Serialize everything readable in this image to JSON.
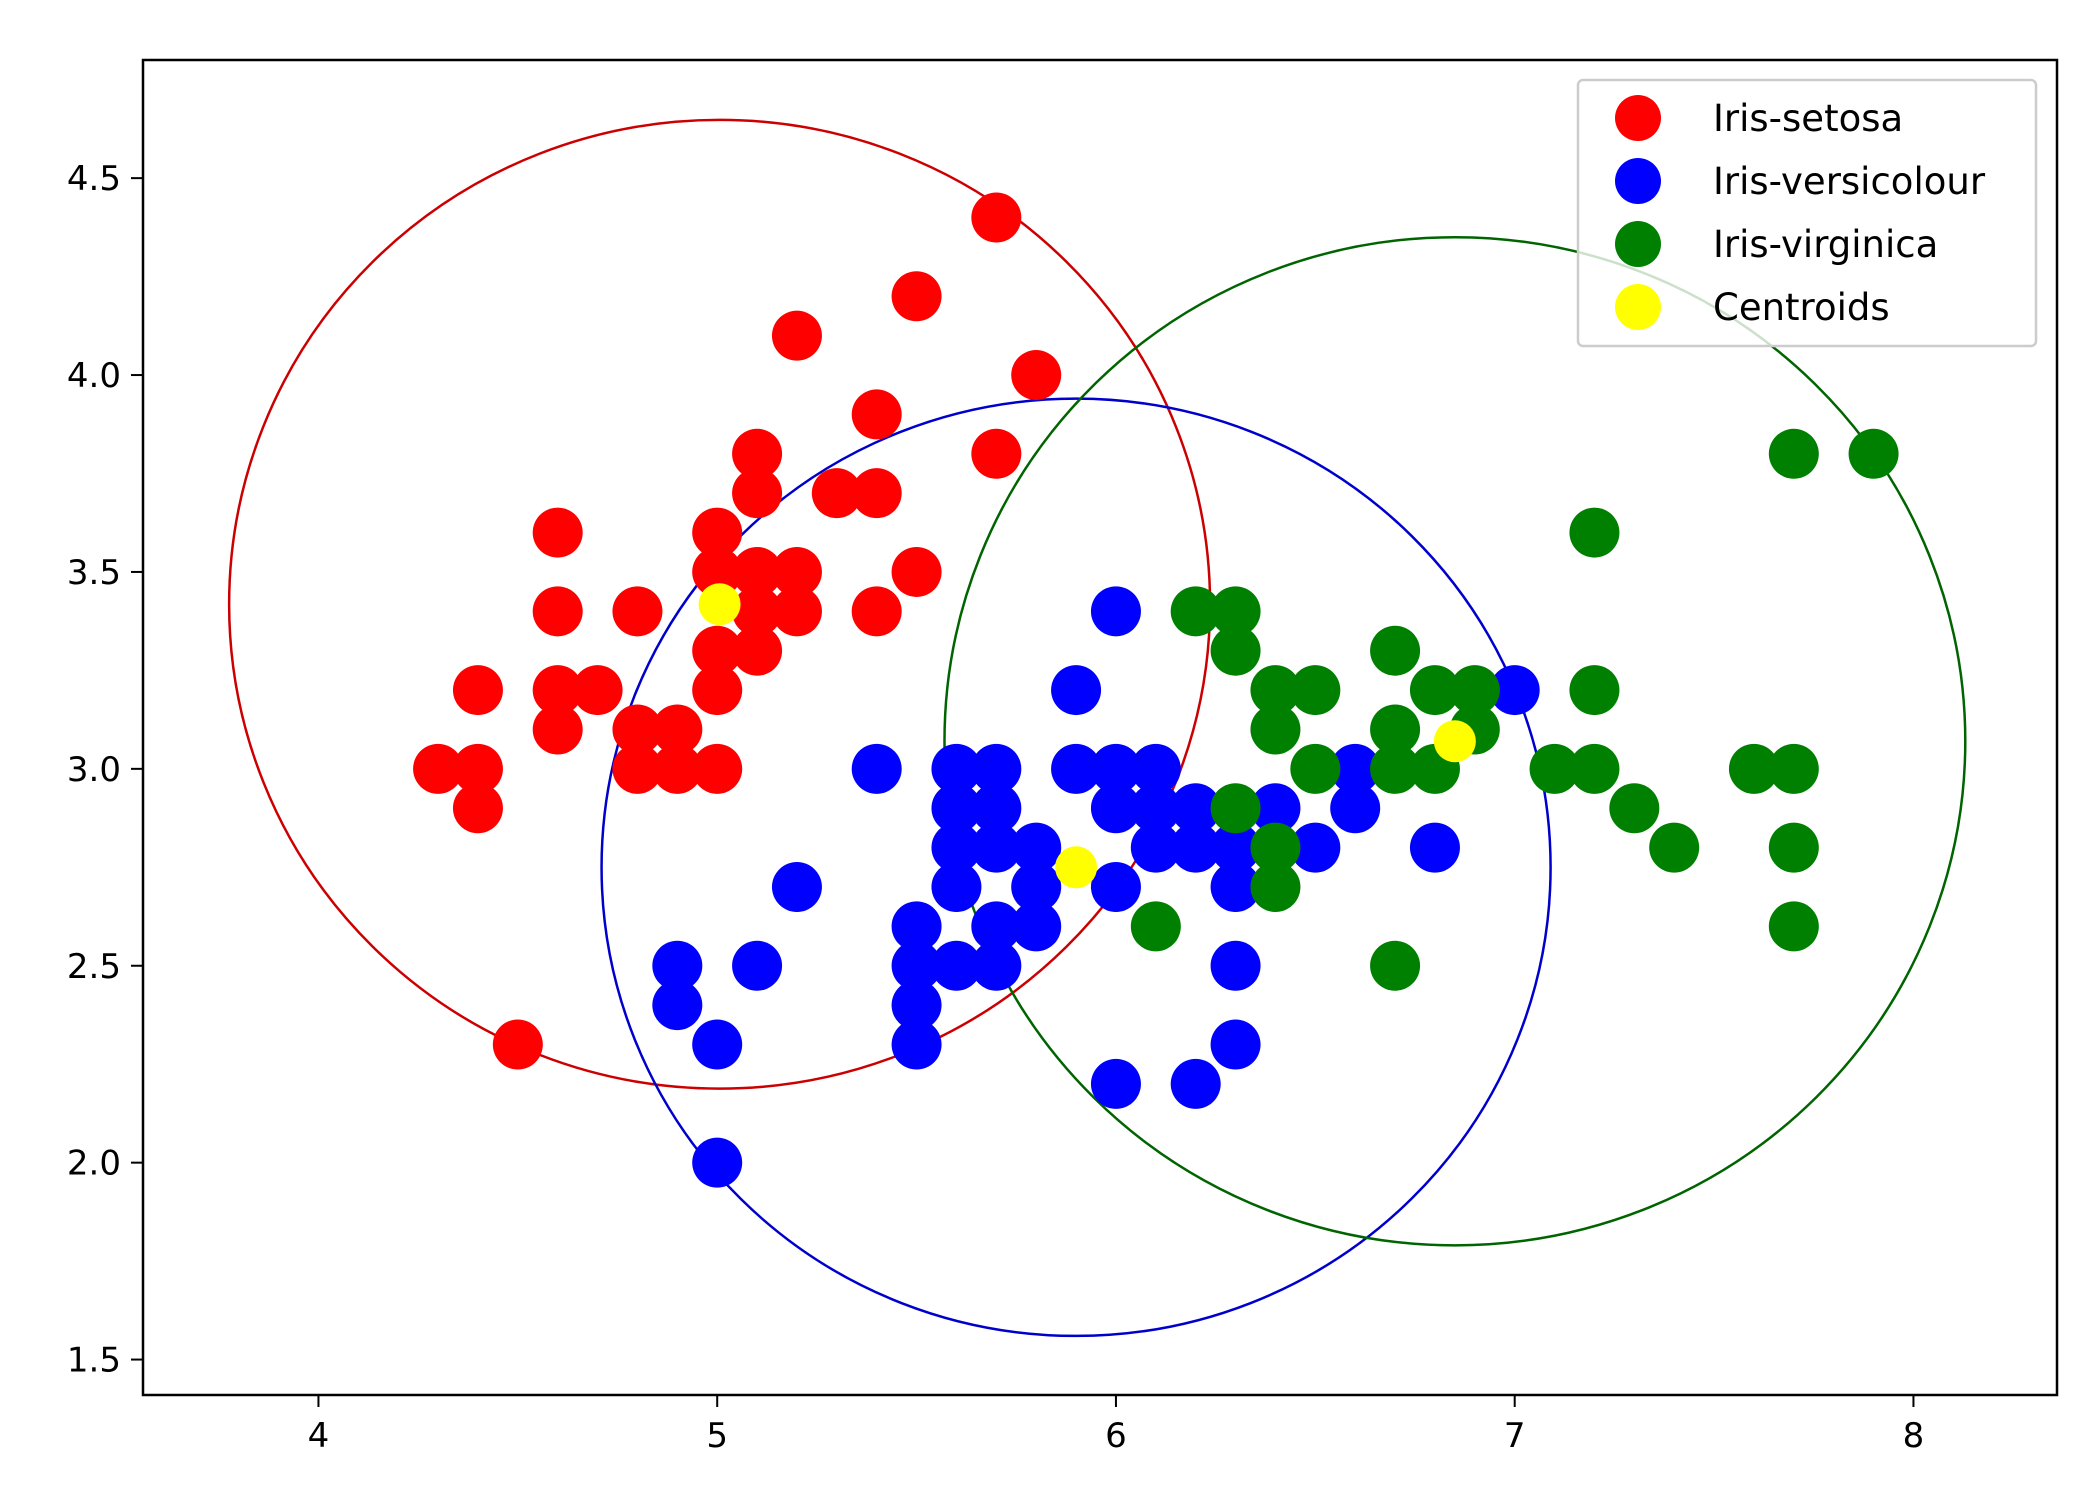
{
  "chart_data": {
    "type": "scatter",
    "title": "",
    "xlabel": "",
    "ylabel": "",
    "xlim": [
      3.56,
      8.36
    ],
    "ylim": [
      1.41,
      4.8
    ],
    "x_ticks": [
      {
        "value": 4,
        "label": "4"
      },
      {
        "value": 5,
        "label": "5"
      },
      {
        "value": 6,
        "label": "6"
      },
      {
        "value": 7,
        "label": "7"
      },
      {
        "value": 8,
        "label": "8"
      }
    ],
    "y_ticks": [
      {
        "value": 1.5,
        "label": "1.5"
      },
      {
        "value": 2.0,
        "label": "2.0"
      },
      {
        "value": 2.5,
        "label": "2.5"
      },
      {
        "value": 3.0,
        "label": "3.0"
      },
      {
        "value": 3.5,
        "label": "3.5"
      },
      {
        "value": 4.0,
        "label": "4.0"
      },
      {
        "value": 4.5,
        "label": "4.5"
      }
    ],
    "grid": false,
    "legend_position": "top-right",
    "series": [
      {
        "name": "Iris-setosa",
        "color": "#ff0000",
        "points": [
          [
            5.7,
            4.4
          ],
          [
            5.5,
            4.2
          ],
          [
            5.2,
            4.1
          ],
          [
            5.8,
            4.0
          ],
          [
            5.4,
            3.9
          ],
          [
            5.1,
            3.8
          ],
          [
            5.7,
            3.8
          ],
          [
            5.1,
            3.7
          ],
          [
            5.3,
            3.7
          ],
          [
            5.4,
            3.7
          ],
          [
            4.6,
            3.6
          ],
          [
            5.0,
            3.6
          ],
          [
            5.0,
            3.5
          ],
          [
            5.1,
            3.5
          ],
          [
            5.2,
            3.5
          ],
          [
            5.5,
            3.5
          ],
          [
            4.6,
            3.4
          ],
          [
            4.8,
            3.4
          ],
          [
            5.1,
            3.4
          ],
          [
            5.2,
            3.4
          ],
          [
            5.4,
            3.4
          ],
          [
            5.0,
            3.3
          ],
          [
            5.1,
            3.3
          ],
          [
            4.4,
            3.2
          ],
          [
            4.6,
            3.2
          ],
          [
            4.7,
            3.2
          ],
          [
            5.0,
            3.2
          ],
          [
            4.6,
            3.1
          ],
          [
            4.8,
            3.1
          ],
          [
            4.9,
            3.1
          ],
          [
            4.3,
            3.0
          ],
          [
            4.4,
            3.0
          ],
          [
            4.8,
            3.0
          ],
          [
            4.9,
            3.0
          ],
          [
            5.0,
            3.0
          ],
          [
            4.4,
            2.9
          ],
          [
            4.5,
            2.3
          ]
        ]
      },
      {
        "name": "Iris-versicolour",
        "color": "#0000ff",
        "points": [
          [
            6.0,
            3.4
          ],
          [
            5.9,
            3.2
          ],
          [
            7.0,
            3.2
          ],
          [
            5.4,
            3.0
          ],
          [
            5.6,
            3.0
          ],
          [
            5.7,
            3.0
          ],
          [
            5.9,
            3.0
          ],
          [
            6.0,
            3.0
          ],
          [
            6.1,
            3.0
          ],
          [
            6.6,
            3.0
          ],
          [
            5.6,
            2.9
          ],
          [
            5.7,
            2.9
          ],
          [
            6.0,
            2.9
          ],
          [
            6.1,
            2.9
          ],
          [
            6.2,
            2.9
          ],
          [
            6.4,
            2.9
          ],
          [
            6.6,
            2.9
          ],
          [
            5.6,
            2.8
          ],
          [
            5.7,
            2.8
          ],
          [
            5.8,
            2.8
          ],
          [
            6.1,
            2.8
          ],
          [
            6.2,
            2.8
          ],
          [
            6.3,
            2.8
          ],
          [
            6.5,
            2.8
          ],
          [
            6.8,
            2.8
          ],
          [
            5.2,
            2.7
          ],
          [
            5.6,
            2.7
          ],
          [
            5.8,
            2.7
          ],
          [
            6.0,
            2.7
          ],
          [
            6.3,
            2.7
          ],
          [
            5.5,
            2.6
          ],
          [
            5.7,
            2.6
          ],
          [
            5.8,
            2.6
          ],
          [
            4.9,
            2.5
          ],
          [
            5.1,
            2.5
          ],
          [
            5.5,
            2.5
          ],
          [
            5.6,
            2.5
          ],
          [
            5.7,
            2.5
          ],
          [
            6.3,
            2.5
          ],
          [
            4.9,
            2.4
          ],
          [
            5.5,
            2.4
          ],
          [
            5.0,
            2.3
          ],
          [
            5.5,
            2.3
          ],
          [
            6.3,
            2.3
          ],
          [
            6.0,
            2.2
          ],
          [
            6.2,
            2.2
          ],
          [
            5.0,
            2.0
          ]
        ]
      },
      {
        "name": "Iris-virginica",
        "color": "#008000",
        "points": [
          [
            7.7,
            3.8
          ],
          [
            7.9,
            3.8
          ],
          [
            7.2,
            3.6
          ],
          [
            6.2,
            3.4
          ],
          [
            6.3,
            3.4
          ],
          [
            6.3,
            3.3
          ],
          [
            6.7,
            3.3
          ],
          [
            6.4,
            3.2
          ],
          [
            6.5,
            3.2
          ],
          [
            6.8,
            3.2
          ],
          [
            6.9,
            3.2
          ],
          [
            7.2,
            3.2
          ],
          [
            6.4,
            3.1
          ],
          [
            6.7,
            3.1
          ],
          [
            6.9,
            3.1
          ],
          [
            6.5,
            3.0
          ],
          [
            6.7,
            3.0
          ],
          [
            6.8,
            3.0
          ],
          [
            7.1,
            3.0
          ],
          [
            7.2,
            3.0
          ],
          [
            7.6,
            3.0
          ],
          [
            7.7,
            3.0
          ],
          [
            6.3,
            2.9
          ],
          [
            7.3,
            2.9
          ],
          [
            6.4,
            2.8
          ],
          [
            7.4,
            2.8
          ],
          [
            7.7,
            2.8
          ],
          [
            6.4,
            2.7
          ],
          [
            6.1,
            2.6
          ],
          [
            7.7,
            2.6
          ],
          [
            6.7,
            2.5
          ]
        ]
      },
      {
        "name": "Centroids",
        "color": "#ffff00",
        "points": [
          [
            5.006,
            3.418
          ],
          [
            5.9,
            2.75
          ],
          [
            6.85,
            3.07
          ]
        ]
      }
    ],
    "circles": [
      {
        "cx": 5.006,
        "cy": 3.418,
        "r": 1.23,
        "color": "#cc0000"
      },
      {
        "cx": 5.9,
        "cy": 2.75,
        "r": 1.19,
        "color": "#0000cc"
      },
      {
        "cx": 6.85,
        "cy": 3.07,
        "r": 1.28,
        "color": "#006400"
      }
    ]
  }
}
